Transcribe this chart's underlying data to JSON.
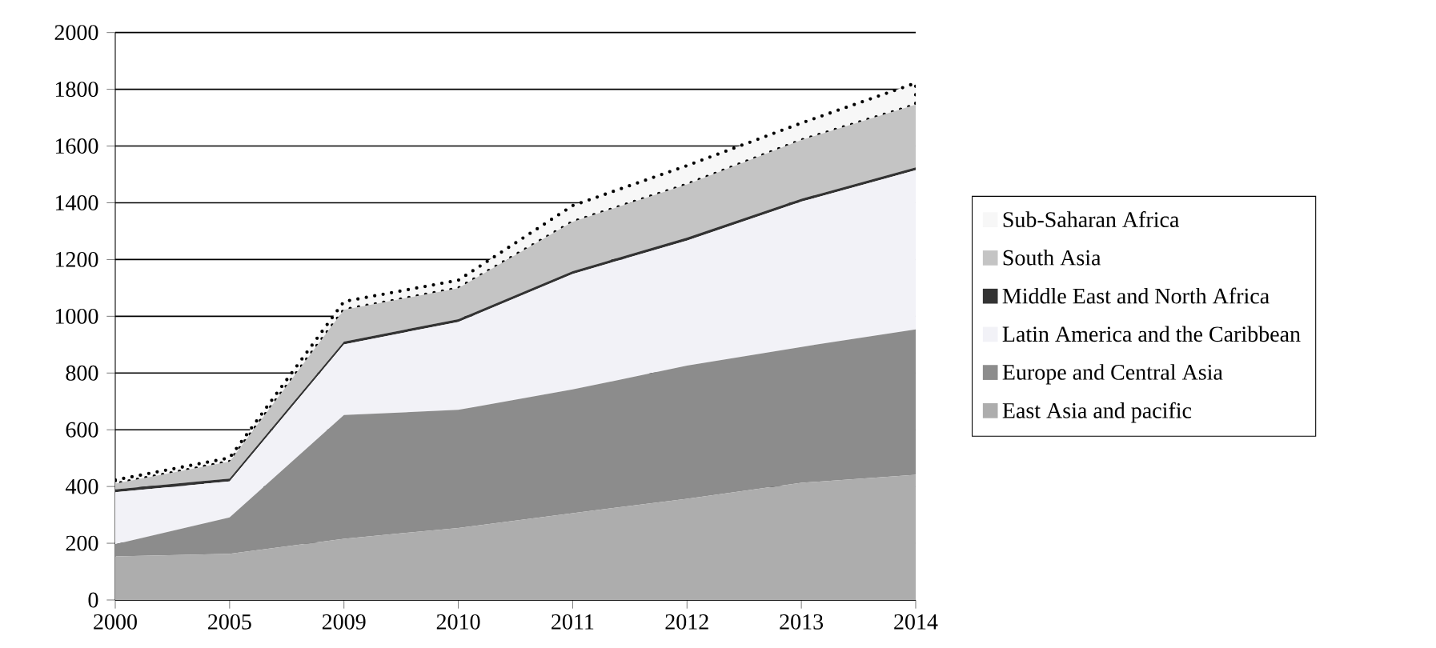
{
  "chart_data": {
    "type": "area",
    "stacked": true,
    "categories": [
      "2000",
      "2005",
      "2009",
      "2010",
      "2011",
      "2012",
      "2013",
      "2014"
    ],
    "series": [
      {
        "name": "East Asia and pacific",
        "color": "#adadad",
        "values": [
          154,
          163,
          216,
          254,
          306,
          357,
          413,
          441
        ]
      },
      {
        "name": "Europe and Central Asia",
        "color": "#8c8c8c",
        "values": [
          43,
          128,
          436,
          416,
          436,
          469,
          479,
          513
        ]
      },
      {
        "name": "Latin America and the Caribbean",
        "color": "#f2f2f7",
        "values": [
          183,
          127,
          249,
          310,
          407,
          441,
          512,
          561
        ]
      },
      {
        "name": "Middle East and North Africa",
        "color": "#333333",
        "values": [
          10,
          10,
          10,
          10,
          10,
          10,
          10,
          10
        ]
      },
      {
        "name": "South Asia",
        "color": "#c4c4c4",
        "values": [
          20,
          60,
          112,
          109,
          174,
          188,
          207,
          221
        ]
      },
      {
        "name": "Sub-Saharan Africa",
        "color": "#f7f7f7",
        "line_style": "dotted",
        "values": [
          13,
          13,
          29,
          28,
          57,
          66,
          60,
          76
        ]
      }
    ],
    "ylim": [
      0,
      2000
    ],
    "yticks": [
      0,
      200,
      400,
      600,
      800,
      1000,
      1200,
      1400,
      1600,
      1800,
      2000
    ],
    "grid": "y",
    "legend": "right"
  }
}
